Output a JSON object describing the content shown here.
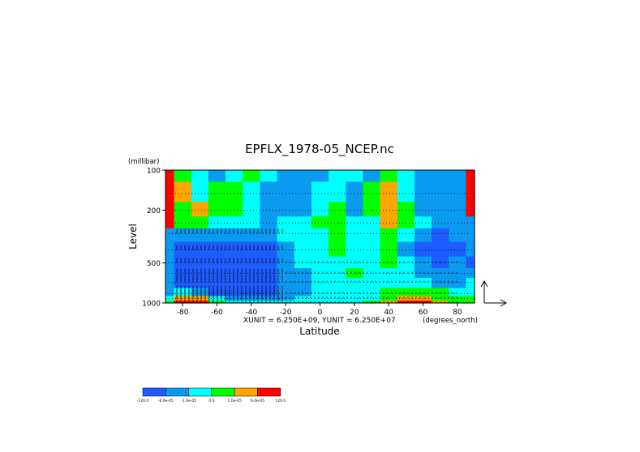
{
  "chart_data": {
    "type": "heatmap",
    "title": "EPFLX_1978-05_NCEP.nc",
    "xlabel": "Latitude",
    "ylabel": "Level",
    "y_units": "(millibar)",
    "x_units": "(degrees_north)",
    "vector_units": "XUNIT = 6.250E+09, YUNIT = 6.250E+07",
    "xlim": [
      -90,
      90
    ],
    "ylim": [
      1000,
      100
    ],
    "y_scale": "log",
    "x_ticks": [
      -80,
      -60,
      -40,
      -20,
      0,
      20,
      40,
      60,
      80
    ],
    "x_tick_labels": [
      "-80",
      "-60",
      "-40",
      "-20",
      "0",
      "20",
      "40",
      "60",
      "80"
    ],
    "y_ticks": [
      100,
      200,
      500,
      1000
    ],
    "y_tick_labels": [
      "100",
      "200",
      "500",
      "1000"
    ],
    "colorbar": {
      "colors": [
        "#1f5cff",
        "#0a9af0",
        "#00ffff",
        "#00ff00",
        "#ffa500",
        "#ff0000"
      ],
      "labels": [
        "-120.0",
        "-6.0e-05",
        "-1.0e-05",
        "0.0",
        "1.0e-05",
        "6.0e-05",
        "120.0"
      ]
    },
    "levels": [
      100,
      150,
      200,
      250,
      300,
      400,
      500,
      600,
      700,
      850,
      925,
      1000
    ],
    "latitudes": [
      -90,
      -80,
      -70,
      -60,
      -50,
      -40,
      -30,
      -20,
      -10,
      0,
      10,
      20,
      30,
      40,
      50,
      60,
      70,
      80,
      90
    ],
    "values_class": [
      [
        5,
        3,
        2,
        1,
        2,
        3,
        2,
        1,
        1,
        1,
        2,
        2,
        1,
        3,
        2,
        1,
        1,
        1,
        5
      ],
      [
        5,
        4,
        2,
        3,
        3,
        2,
        1,
        1,
        1,
        2,
        2,
        1,
        3,
        4,
        2,
        1,
        1,
        1,
        5
      ],
      [
        5,
        3,
        4,
        3,
        3,
        2,
        1,
        1,
        1,
        2,
        3,
        1,
        3,
        4,
        3,
        1,
        1,
        1,
        5
      ],
      [
        5,
        3,
        3,
        2,
        2,
        2,
        1,
        2,
        2,
        3,
        3,
        2,
        2,
        4,
        3,
        2,
        1,
        1,
        1
      ],
      [
        1,
        1,
        1,
        1,
        1,
        1,
        1,
        2,
        2,
        2,
        3,
        2,
        2,
        3,
        2,
        1,
        0,
        1,
        1
      ],
      [
        1,
        0,
        0,
        0,
        0,
        0,
        0,
        1,
        2,
        2,
        3,
        2,
        2,
        3,
        1,
        0,
        0,
        0,
        1
      ],
      [
        1,
        0,
        0,
        0,
        0,
        0,
        0,
        1,
        2,
        2,
        2,
        2,
        2,
        3,
        2,
        1,
        0,
        1,
        0
      ],
      [
        1,
        0,
        0,
        0,
        0,
        0,
        0,
        1,
        1,
        2,
        2,
        3,
        2,
        2,
        2,
        1,
        1,
        1,
        1
      ],
      [
        1,
        0,
        0,
        0,
        0,
        0,
        0,
        1,
        1,
        2,
        2,
        2,
        2,
        2,
        2,
        2,
        1,
        1,
        2
      ],
      [
        1,
        2,
        1,
        0,
        0,
        0,
        0,
        1,
        1,
        2,
        2,
        2,
        2,
        3,
        3,
        3,
        3,
        2,
        2
      ],
      [
        2,
        4,
        4,
        2,
        1,
        1,
        1,
        1,
        2,
        2,
        2,
        2,
        2,
        3,
        4,
        4,
        3,
        3,
        3
      ],
      [
        3,
        5,
        5,
        3,
        2,
        2,
        2,
        2,
        2,
        2,
        2,
        2,
        3,
        4,
        5,
        5,
        4,
        3,
        3
      ]
    ],
    "grid": true,
    "vectors": true
  }
}
